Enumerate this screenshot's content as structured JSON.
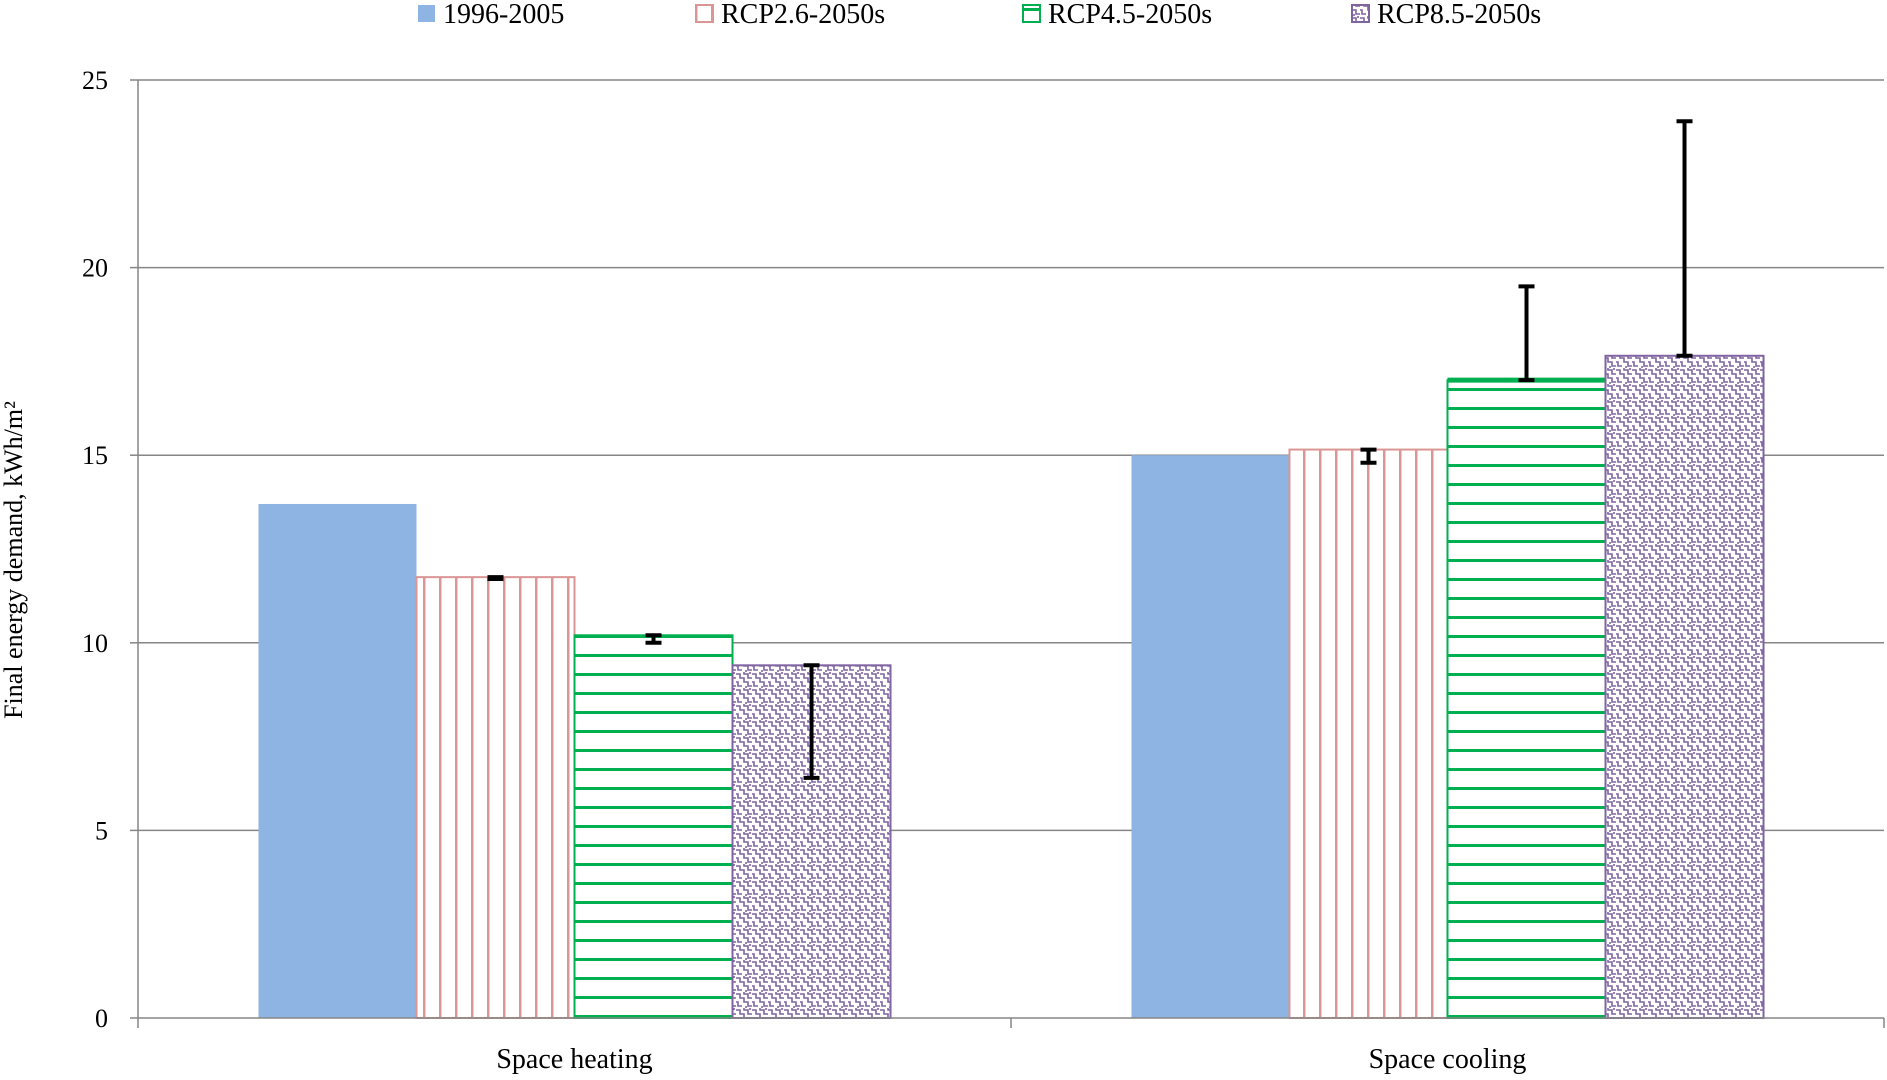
{
  "chart_data": {
    "type": "bar",
    "title": "",
    "xlabel": "",
    "ylabel": "Final energy demand, kWh/m²",
    "ylim": [
      0,
      25
    ],
    "yticks": [
      0,
      5,
      10,
      15,
      20,
      25
    ],
    "grid": true,
    "legend_position": "top",
    "categories": [
      "Space heating",
      "Space cooling"
    ],
    "series": [
      {
        "name": "1996-2005",
        "color": "#8EB4E3",
        "pattern": "solid",
        "values": [
          13.7,
          15.0
        ],
        "error_low": [
          null,
          null
        ],
        "error_high": [
          null,
          null
        ]
      },
      {
        "name": "RCP2.6-2050s",
        "color": "#D99694",
        "pattern": "vertical-lines",
        "values": [
          11.75,
          15.15
        ],
        "error_low": [
          11.7,
          14.8
        ],
        "error_high": [
          11.75,
          15.15
        ]
      },
      {
        "name": "RCP4.5-2050s",
        "color": "#00B050",
        "pattern": "horizontal-lines",
        "values": [
          10.2,
          17.0
        ],
        "error_low": [
          10.0,
          17.0
        ],
        "error_high": [
          10.2,
          19.5
        ]
      },
      {
        "name": "RCP8.5-2050s",
        "color": "#8064A2",
        "pattern": "fretwork",
        "values": [
          9.4,
          17.65
        ],
        "error_low": [
          6.4,
          17.65
        ],
        "error_high": [
          9.4,
          23.9
        ]
      }
    ]
  }
}
